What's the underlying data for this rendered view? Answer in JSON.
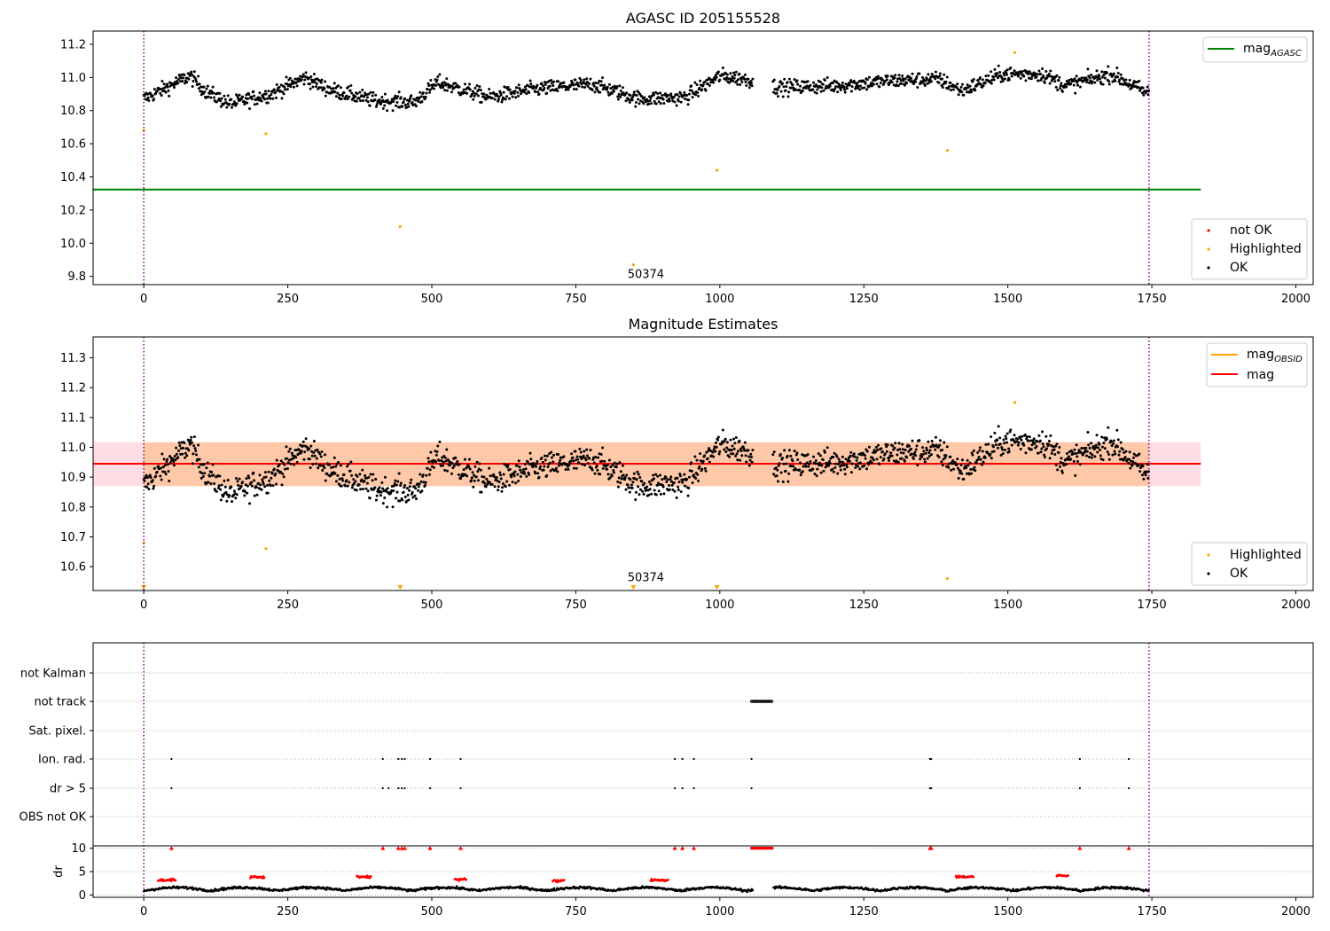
{
  "colors": {
    "ok": "#000000",
    "highlighted": "#ffa500",
    "not_ok": "#ff0000",
    "agasc_line": "#008000",
    "mag_line": "#ff0000",
    "mag_obsid": "#ffa500",
    "vline": "#800080",
    "band_inner": "#ffc8a8",
    "band_outer": "#ffdde3"
  },
  "chart_data": [
    {
      "type": "scatter",
      "title": "AGASC ID 205155528",
      "xlim": [
        -88,
        2030
      ],
      "ylim": [
        9.75,
        11.28
      ],
      "x_ticks": [
        "0",
        "250",
        "500",
        "750",
        "1000",
        "1250",
        "1500",
        "1750",
        "2000"
      ],
      "x_tick_values": [
        0,
        250,
        500,
        750,
        1000,
        1250,
        1500,
        1750,
        2000
      ],
      "y_ticks": [
        "9.8",
        "10.0",
        "10.2",
        "10.4",
        "10.6",
        "10.8",
        "11.0",
        "11.2"
      ],
      "y_tick_values": [
        9.8,
        10.0,
        10.2,
        10.4,
        10.6,
        10.8,
        11.0,
        11.2
      ],
      "vlines": [
        0,
        1745
      ],
      "hline": {
        "y": 10.324,
        "x0": -88,
        "x1": 1835
      },
      "highlighted": [
        [
          0,
          10.68
        ],
        [
          212,
          10.66
        ],
        [
          445,
          10.1
        ],
        [
          850,
          9.87
        ],
        [
          995,
          10.44
        ],
        [
          1395,
          10.56
        ],
        [
          1512,
          11.15
        ]
      ],
      "ok_series": {
        "x_start": 0,
        "x_end": 1745,
        "gap": [
          1058,
          1092
        ],
        "segments": [
          [
            0,
            10.87
          ],
          [
            80,
            11.01
          ],
          [
            110,
            10.91
          ],
          [
            150,
            10.84
          ],
          [
            220,
            10.9
          ],
          [
            280,
            11.0
          ],
          [
            320,
            10.93
          ],
          [
            400,
            10.86
          ],
          [
            470,
            10.85
          ],
          [
            510,
            10.97
          ],
          [
            600,
            10.88
          ],
          [
            680,
            10.93
          ],
          [
            780,
            10.96
          ],
          [
            860,
            10.87
          ],
          [
            940,
            10.88
          ],
          [
            1000,
            11.01
          ],
          [
            1045,
            10.99
          ],
          [
            1100,
            10.94
          ],
          [
            1200,
            10.95
          ],
          [
            1300,
            10.98
          ],
          [
            1380,
            10.99
          ],
          [
            1420,
            10.92
          ],
          [
            1490,
            11.02
          ],
          [
            1560,
            11.02
          ],
          [
            1600,
            10.95
          ],
          [
            1680,
            11.02
          ],
          [
            1745,
            10.9
          ]
        ]
      },
      "annotation": "50374",
      "annotation_pos": [
        850,
        9.8
      ],
      "legend_top": [
        {
          "label": "mag",
          "sub": "AGASC",
          "kind": "line"
        }
      ],
      "legend_bottom": [
        {
          "label": "not OK",
          "kind": "dot"
        },
        {
          "label": "Highlighted",
          "kind": "dot"
        },
        {
          "label": "OK",
          "kind": "dot"
        }
      ]
    },
    {
      "type": "scatter",
      "title": "Magnitude Estimates",
      "xlim": [
        -88,
        2030
      ],
      "ylim": [
        10.52,
        11.37
      ],
      "x_ticks": [
        "0",
        "250",
        "500",
        "750",
        "1000",
        "1250",
        "1500",
        "1750",
        "2000"
      ],
      "x_tick_values": [
        0,
        250,
        500,
        750,
        1000,
        1250,
        1500,
        1750,
        2000
      ],
      "y_ticks": [
        "10.6",
        "10.7",
        "10.8",
        "10.9",
        "11.0",
        "11.1",
        "11.2",
        "11.3"
      ],
      "y_tick_values": [
        10.6,
        10.7,
        10.8,
        10.9,
        11.0,
        11.1,
        11.2,
        11.3
      ],
      "vlines": [
        0,
        1745
      ],
      "mag_line": 10.945,
      "mag_band": [
        10.87,
        11.017
      ],
      "band_x": [
        -88,
        1835
      ],
      "highlighted": [
        [
          0,
          10.68
        ],
        [
          212,
          10.66
        ],
        [
          1395,
          10.56
        ],
        [
          1512,
          11.15
        ]
      ],
      "below_markers": [
        0,
        445,
        850,
        995
      ],
      "annotation": "50374",
      "annotation_pos": [
        850,
        10.545
      ],
      "legend_top": [
        {
          "label": "mag",
          "sub": "OBSID",
          "kind": "line"
        },
        {
          "label": "mag",
          "kind": "line"
        }
      ],
      "legend_bottom": [
        {
          "label": "Highlighted",
          "kind": "dot"
        },
        {
          "label": "OK",
          "kind": "dot"
        }
      ]
    },
    {
      "type": "scatter",
      "title": "",
      "xlim": [
        -88,
        2030
      ],
      "x_ticks": [
        "0",
        "250",
        "500",
        "750",
        "1000",
        "1250",
        "1500",
        "1750",
        "2000"
      ],
      "x_tick_values": [
        0,
        250,
        500,
        750,
        1000,
        1250,
        1500,
        1750,
        2000
      ],
      "vlines": [
        0,
        1745
      ],
      "flag_labels": [
        "not Kalman",
        "not track",
        "Sat. pixel.",
        "Ion. rad.",
        "dr > 5",
        "OBS not OK"
      ],
      "flags": {
        "not track": [
          1055,
          1092
        ],
        "Ion. rad.": [
          48,
          415,
          442,
          448,
          453,
          497,
          550,
          922,
          935,
          955,
          1055,
          1365,
          1367,
          1625,
          1710
        ],
        "dr > 5": [
          48,
          415,
          425,
          442,
          448,
          453,
          497,
          550,
          922,
          935,
          955,
          1055,
          1365,
          1367,
          1625,
          1710
        ]
      },
      "dr_ylabel": "dr",
      "dr_ticks": [
        "0",
        "5",
        "10"
      ],
      "dr_tick_values": [
        0,
        5,
        10
      ],
      "dr_ylim": [
        -0.5,
        10.5
      ],
      "dr_red_clusters": [
        [
          25,
          55,
          3.2
        ],
        [
          185,
          210,
          3.8
        ],
        [
          370,
          395,
          3.9
        ],
        [
          540,
          560,
          3.3
        ],
        [
          710,
          730,
          3.0
        ],
        [
          880,
          910,
          3.2
        ],
        [
          1410,
          1440,
          3.9
        ],
        [
          1585,
          1605,
          4.1
        ]
      ],
      "dr_red_tens": [
        48,
        415,
        442,
        448,
        453,
        497,
        550,
        922,
        935,
        955,
        1365,
        1367,
        1625,
        1710
      ]
    }
  ]
}
